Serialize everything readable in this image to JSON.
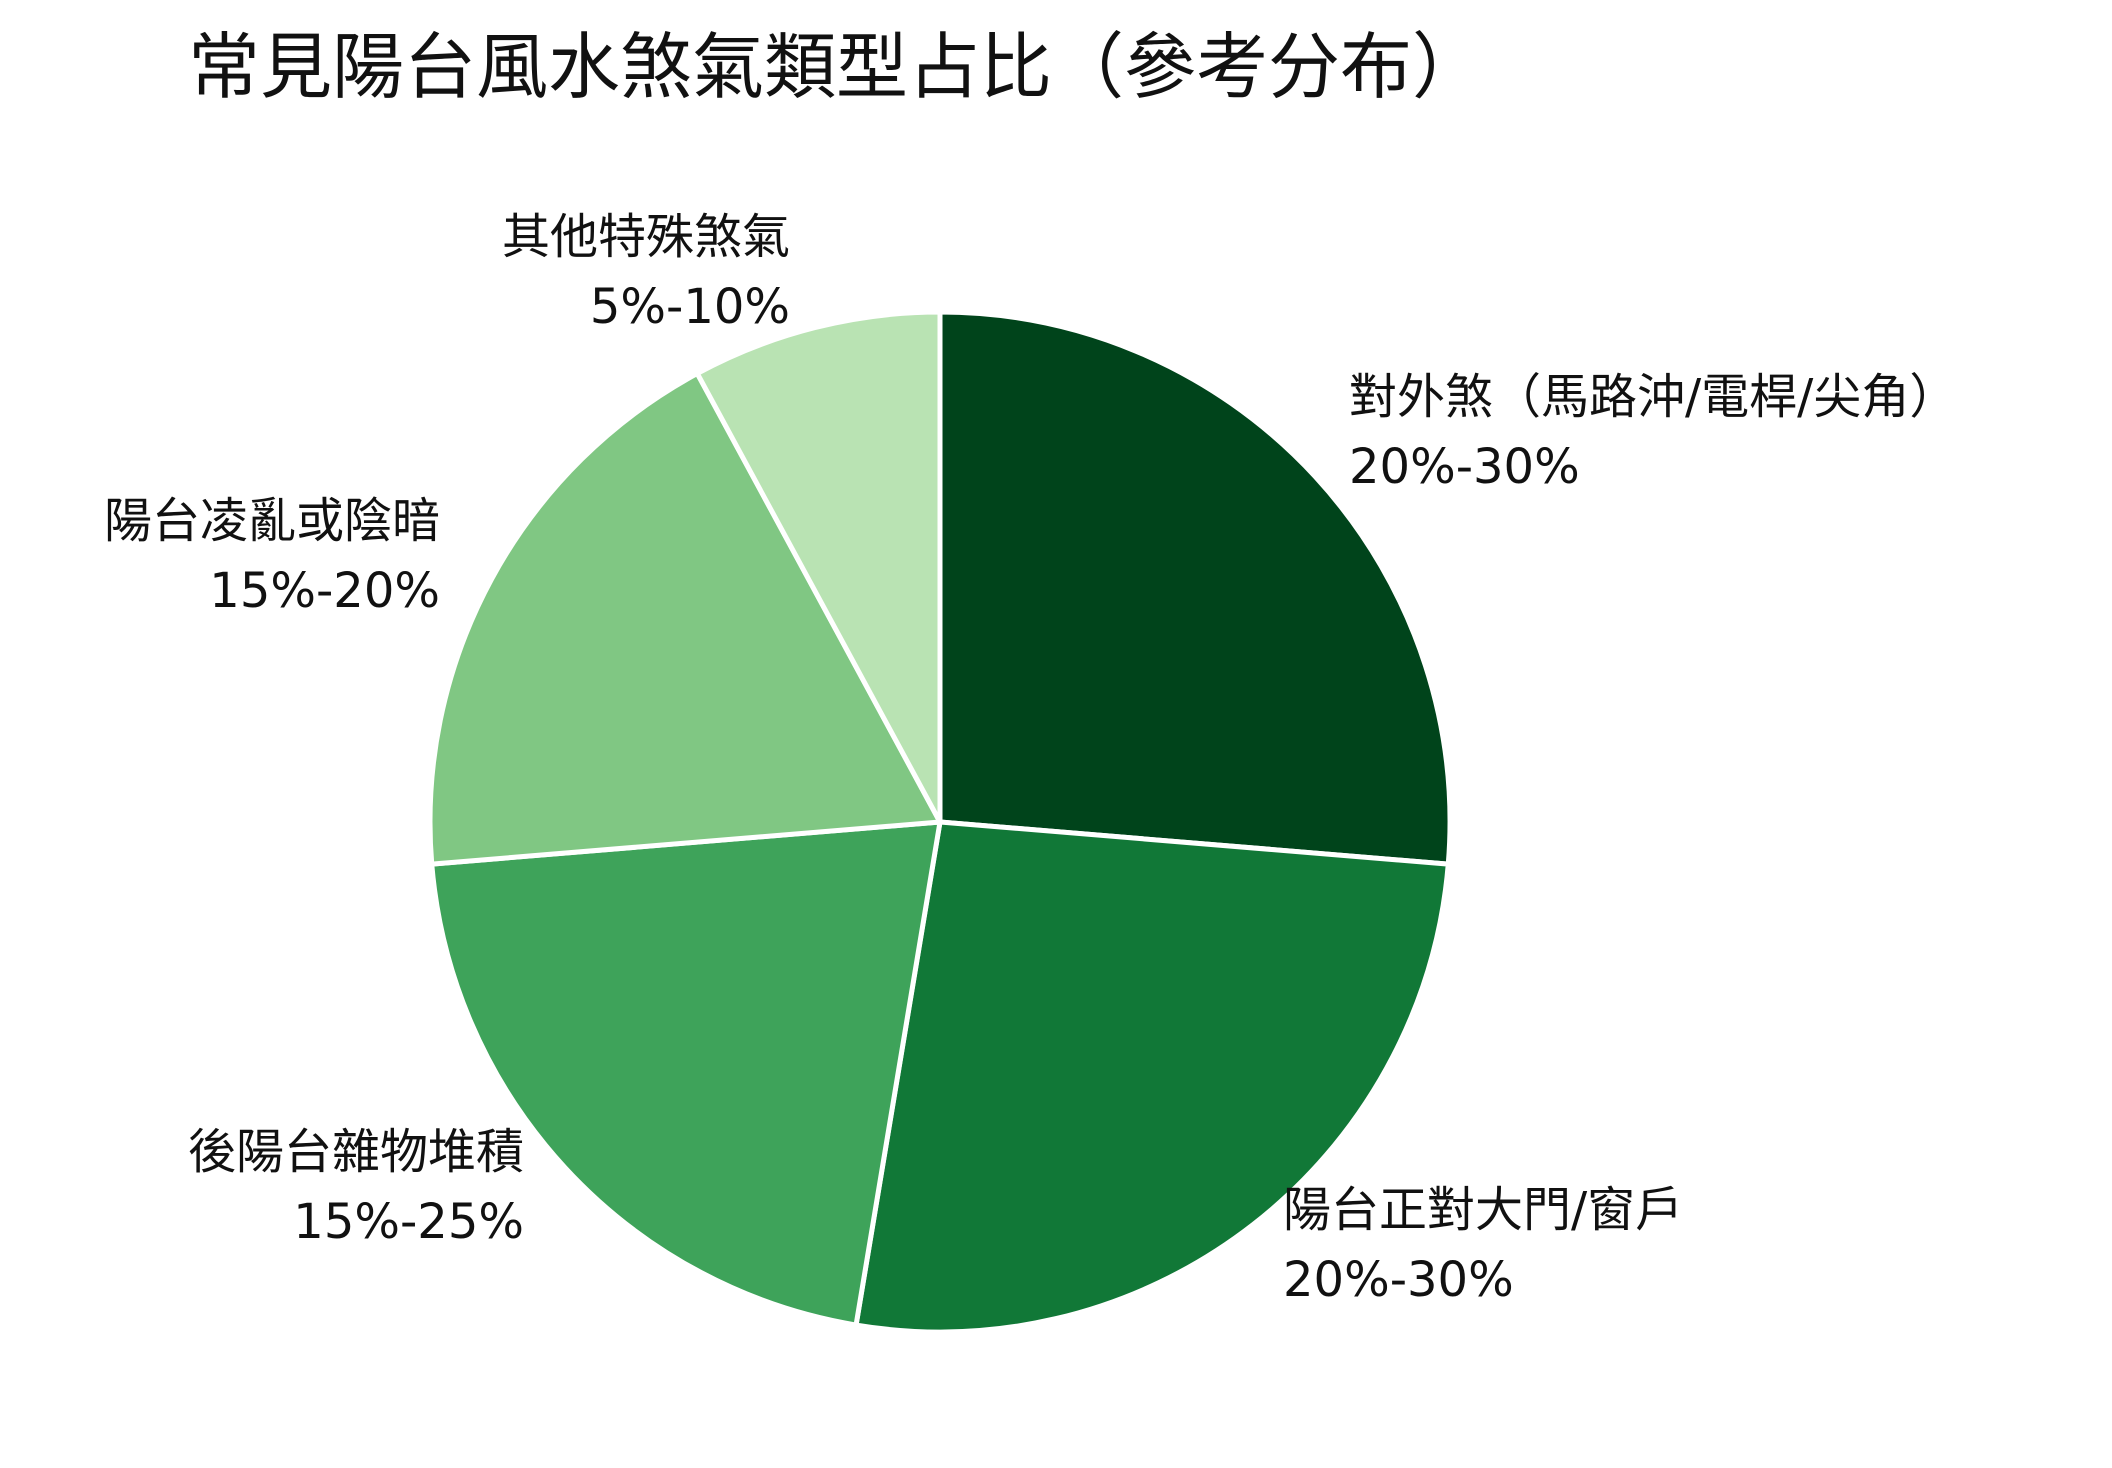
{
  "chart_data": {
    "type": "pie",
    "title": "常見陽台風水煞氣類型占比（參考分布）",
    "slices": [
      {
        "label": "對外煞（馬路沖/電桿/尖角）",
        "range_label": "20%-30%",
        "value": 25,
        "color": "#00441b"
      },
      {
        "label": "陽台正對大門/窗戶",
        "range_label": "20%-30%",
        "value": 25,
        "color": "#117837"
      },
      {
        "label": "後陽台雜物堆積",
        "range_label": "15%-25%",
        "value": 20,
        "color": "#3ea35a"
      },
      {
        "label": "陽台凌亂或陰暗",
        "range_label": "15%-20%",
        "value": 17.5,
        "color": "#80c783"
      },
      {
        "label": "其他特殊煞氣",
        "range_label": "5%-10%",
        "value": 7.5,
        "color": "#b9e3b3"
      }
    ],
    "start_angle_deg": 0,
    "direction": "clockwise",
    "slice_border_color": "#ffffff",
    "legend": "none"
  }
}
